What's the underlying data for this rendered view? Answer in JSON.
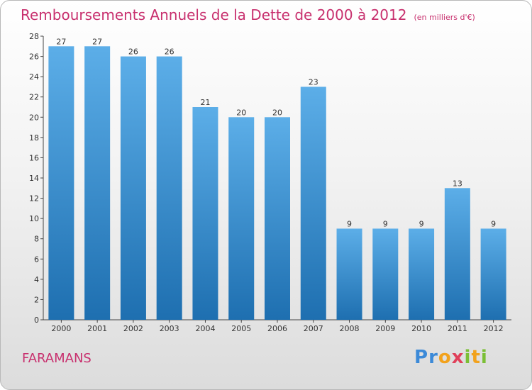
{
  "header": {
    "title": "Remboursements Annuels de la Dette de 2000 à 2012",
    "subtitle": "(en milliers d'€)"
  },
  "footer": {
    "commune": "FARAMANS",
    "logo": "Proxiti"
  },
  "colors": {
    "title": "#c8306e",
    "bar_top": "#5caee8",
    "bar_bottom": "#1e6fb0"
  },
  "chart_data": {
    "type": "bar",
    "categories": [
      "2000",
      "2001",
      "2002",
      "2003",
      "2004",
      "2005",
      "2006",
      "2007",
      "2008",
      "2009",
      "2010",
      "2011",
      "2012"
    ],
    "values": [
      27,
      27,
      26,
      26,
      21,
      20,
      20,
      23,
      9,
      9,
      9,
      13,
      9
    ],
    "title": "Remboursements Annuels de la Dette de 2000 à 2012",
    "subtitle": "(en milliers d'€)",
    "xlabel": "",
    "ylabel": "",
    "ylim": [
      0,
      28
    ],
    "yticks": [
      0,
      2,
      4,
      6,
      8,
      10,
      12,
      14,
      16,
      18,
      20,
      22,
      24,
      26,
      28
    ],
    "grid": false,
    "legend": "none"
  }
}
